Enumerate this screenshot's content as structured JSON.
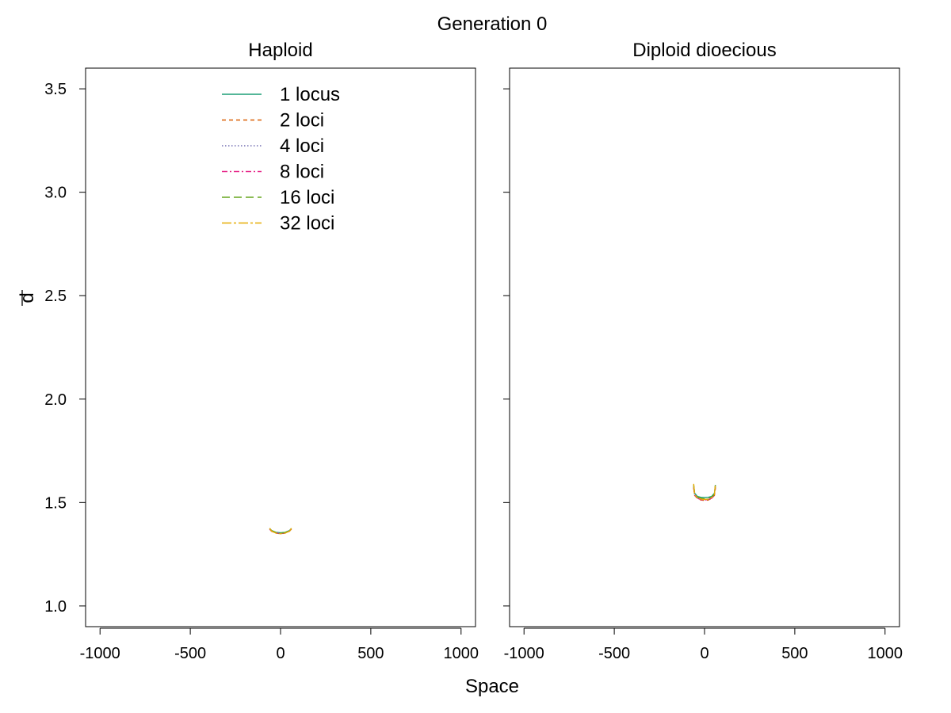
{
  "figure": {
    "title": "Generation 0",
    "xlabel": "Space",
    "ylabel": "d"
  },
  "chart_data": [
    {
      "type": "line",
      "title": "Haploid",
      "xlim": [
        -1080,
        1080
      ],
      "ylim": [
        0.9,
        3.6
      ],
      "xticks": [
        -1000,
        -500,
        0,
        500,
        1000
      ],
      "xtick_labels": [
        "-1000",
        "-500",
        "0",
        "500",
        "1000"
      ],
      "yticks": [
        1.0,
        1.5,
        2.0,
        2.5,
        3.0,
        3.5
      ],
      "ytick_labels": [
        "1.0",
        "1.5",
        "2.0",
        "2.5",
        "3.0",
        "3.5"
      ],
      "grid": false,
      "legend_position": "top-center",
      "series": [
        {
          "name": "1 locus",
          "color": "#1b9e77",
          "dash": "",
          "x": [
            -60,
            -50,
            -25,
            0,
            25,
            50,
            60
          ],
          "y": [
            1.375,
            1.365,
            1.356,
            1.354,
            1.356,
            1.365,
            1.375
          ]
        },
        {
          "name": "2 loci",
          "color": "#d95f02",
          "dash": "5,4",
          "x": [
            -60,
            -50,
            -25,
            0,
            25,
            50,
            60
          ],
          "y": [
            1.372,
            1.362,
            1.352,
            1.349,
            1.352,
            1.362,
            1.372
          ]
        },
        {
          "name": "4 loci",
          "color": "#7570b3",
          "dash": "1.5,2.5",
          "x": [
            -60,
            -50,
            -25,
            0,
            25,
            50,
            60
          ],
          "y": [
            1.373,
            1.363,
            1.354,
            1.351,
            1.354,
            1.363,
            1.373
          ]
        },
        {
          "name": "8 loci",
          "color": "#e7298a",
          "dash": "7,3,2,3",
          "x": [
            -60,
            -50,
            -25,
            0,
            25,
            50,
            60
          ],
          "y": [
            1.371,
            1.361,
            1.353,
            1.35,
            1.353,
            1.361,
            1.371
          ]
        },
        {
          "name": "16 loci",
          "color": "#66a61e",
          "dash": "10,5",
          "x": [
            -60,
            -50,
            -25,
            0,
            25,
            50,
            60
          ],
          "y": [
            1.374,
            1.364,
            1.355,
            1.352,
            1.355,
            1.364,
            1.374
          ]
        },
        {
          "name": "32 loci",
          "color": "#e6ab02",
          "dash": "12,3,3,3",
          "x": [
            -60,
            -50,
            -25,
            0,
            25,
            50,
            60
          ],
          "y": [
            1.376,
            1.362,
            1.352,
            1.349,
            1.352,
            1.362,
            1.376
          ]
        }
      ]
    },
    {
      "type": "line",
      "title": "Diploid dioecious",
      "xlim": [
        -1080,
        1080
      ],
      "ylim": [
        0.9,
        3.6
      ],
      "xticks": [
        -1000,
        -500,
        0,
        500,
        1000
      ],
      "xtick_labels": [
        "-1000",
        "-500",
        "0",
        "500",
        "1000"
      ],
      "yticks": [
        1.0,
        1.5,
        2.0,
        2.5,
        3.0,
        3.5
      ],
      "ytick_labels": [
        "",
        "",
        "",
        "",
        "",
        ""
      ],
      "grid": false,
      "series": [
        {
          "name": "1 locus",
          "color": "#1b9e77",
          "dash": "",
          "x": [
            -60,
            -55,
            -40,
            -20,
            0,
            20,
            40,
            55,
            60
          ],
          "y": [
            1.585,
            1.545,
            1.53,
            1.525,
            1.524,
            1.525,
            1.53,
            1.545,
            1.585
          ]
        },
        {
          "name": "2 loci",
          "color": "#d95f02",
          "dash": "5,4",
          "x": [
            -60,
            -55,
            -40,
            -20,
            0,
            20,
            40,
            55,
            60
          ],
          "y": [
            1.57,
            1.535,
            1.52,
            1.512,
            1.51,
            1.512,
            1.52,
            1.535,
            1.57
          ]
        },
        {
          "name": "4 loci",
          "color": "#7570b3",
          "dash": "1.5,2.5",
          "x": [
            -60,
            -55,
            -40,
            -20,
            0,
            20,
            40,
            55,
            60
          ],
          "y": [
            1.575,
            1.538,
            1.522,
            1.516,
            1.514,
            1.516,
            1.522,
            1.538,
            1.575
          ]
        },
        {
          "name": "8 loci",
          "color": "#e7298a",
          "dash": "7,3,2,3",
          "x": [
            -60,
            -55,
            -40,
            -20,
            0,
            20,
            40,
            55,
            60
          ],
          "y": [
            1.572,
            1.536,
            1.521,
            1.514,
            1.512,
            1.514,
            1.521,
            1.536,
            1.572
          ]
        },
        {
          "name": "16 loci",
          "color": "#66a61e",
          "dash": "10,5",
          "x": [
            -60,
            -55,
            -40,
            -20,
            0,
            20,
            40,
            55,
            60
          ],
          "y": [
            1.58,
            1.542,
            1.527,
            1.52,
            1.518,
            1.52,
            1.527,
            1.542,
            1.58
          ]
        },
        {
          "name": "32 loci",
          "color": "#e6ab02",
          "dash": "12,3,3,3",
          "x": [
            -60,
            -55,
            -40,
            -20,
            0,
            20,
            40,
            55,
            60
          ],
          "y": [
            1.59,
            1.54,
            1.524,
            1.517,
            1.515,
            1.517,
            1.524,
            1.54,
            1.59
          ]
        }
      ]
    }
  ]
}
